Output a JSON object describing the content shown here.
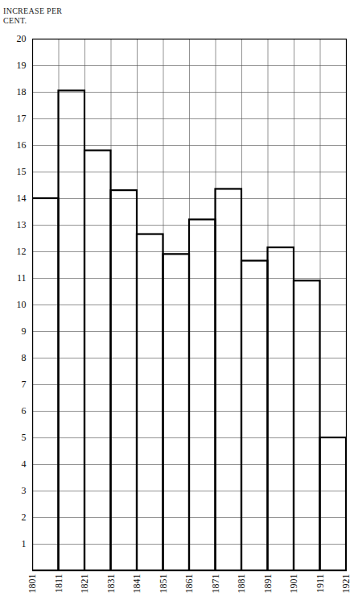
{
  "chart_data": {
    "type": "histogram",
    "y_label": "INCREASE PER CENT.",
    "bins": [
      1801,
      1811,
      1821,
      1831,
      1841,
      1851,
      1861,
      1871,
      1881,
      1891,
      1901,
      1911,
      1921
    ],
    "values": [
      14.0,
      18.05,
      15.8,
      14.3,
      12.65,
      11.9,
      13.2,
      14.35,
      11.65,
      12.15,
      10.9,
      5.0
    ],
    "color": "#000000",
    "xlim": [
      1801,
      1921
    ],
    "xticks": [
      1801,
      1811,
      1821,
      1831,
      1841,
      1851,
      1861,
      1871,
      1881,
      1891,
      1901,
      1911,
      1921
    ],
    "ylim": [
      0,
      20
    ],
    "yticks": [
      1,
      2,
      3,
      4,
      5,
      6,
      7,
      8,
      9,
      10,
      11,
      12,
      13,
      14,
      15,
      16,
      17,
      18,
      19,
      20
    ],
    "grid": true
  }
}
